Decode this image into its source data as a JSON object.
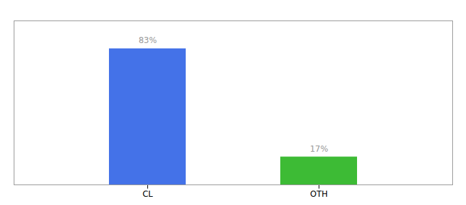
{
  "chart_data": {
    "type": "bar",
    "categories": [
      "CL",
      "OTH"
    ],
    "values": [
      83,
      17
    ],
    "value_labels": [
      "83%",
      "17%"
    ],
    "colors": [
      "#4472e8",
      "#3dbb35"
    ],
    "data_labels": true,
    "ylim": [
      0,
      100
    ],
    "tick_labels": "x"
  }
}
